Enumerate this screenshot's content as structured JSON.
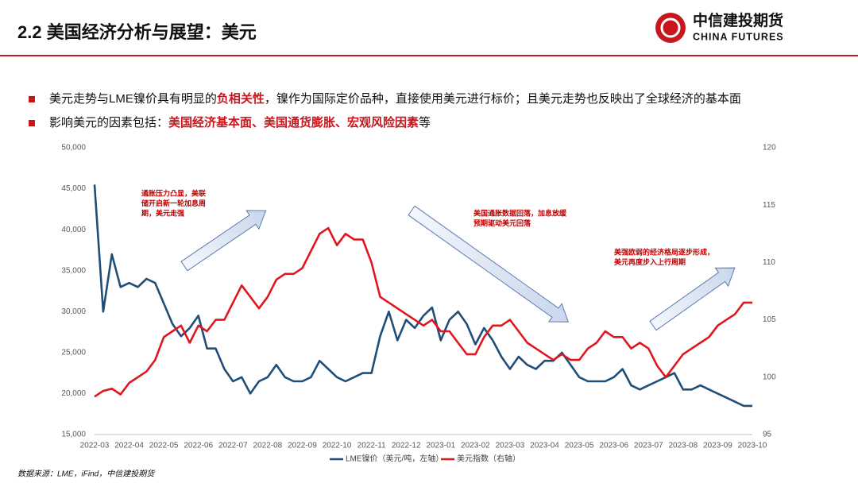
{
  "header": {
    "title": "2.2 美国经济分析与展望：美元",
    "logo_name": "中信建投期货",
    "logo_en": "CHINA FUTURES"
  },
  "bullets": [
    {
      "segments": [
        {
          "text": "美元走势与LME镍价具有明显的"
        },
        {
          "text": "负相关性",
          "highlight": true
        },
        {
          "text": "，镍作为国际定价品种，直接使用美元进行标价；且美元走势也反映出了全球经济的基本面"
        }
      ]
    },
    {
      "segments": [
        {
          "text": "影响美元的因素包括："
        },
        {
          "text": "美国经济基本面、美国通货膨胀、宏观风险因素",
          "highlight": true
        },
        {
          "text": "等"
        }
      ]
    }
  ],
  "chart_data": {
    "type": "line",
    "categories": [
      "2022-03",
      null,
      null,
      null,
      "2022-04",
      null,
      null,
      null,
      "2022-05",
      null,
      null,
      null,
      "2022-06",
      null,
      null,
      null,
      "2022-07",
      null,
      null,
      null,
      "2022-08",
      null,
      null,
      null,
      "2022-09",
      null,
      null,
      null,
      "2022-10",
      null,
      null,
      null,
      "2022-11",
      null,
      null,
      null,
      "2022-12",
      null,
      null,
      null,
      "2023-01",
      null,
      null,
      null,
      "2023-02",
      null,
      null,
      null,
      "2023-03",
      null,
      null,
      null,
      "2023-04",
      null,
      null,
      null,
      "2023-05",
      null,
      null,
      null,
      "2023-06",
      null,
      null,
      null,
      "2023-07",
      null,
      null,
      null,
      "2023-08",
      null,
      null,
      null,
      "2023-09",
      null,
      null,
      null,
      "2023-10"
    ],
    "series": [
      {
        "name": "LME镍价（美元/吨，左轴）",
        "color": "#1f4e79",
        "axis": "y",
        "values": [
          45500,
          30000,
          37000,
          33000,
          33500,
          33000,
          34000,
          33500,
          31000,
          28500,
          27000,
          28000,
          29500,
          25500,
          25500,
          23000,
          21500,
          22000,
          20000,
          21500,
          22000,
          23500,
          22000,
          21500,
          21500,
          22000,
          24000,
          23000,
          22000,
          21500,
          22000,
          22500,
          22500,
          27000,
          30000,
          26500,
          29000,
          28000,
          29500,
          30500,
          26500,
          29000,
          30000,
          28500,
          26000,
          28000,
          26500,
          24500,
          23000,
          24500,
          23500,
          23000,
          24000,
          24000,
          25000,
          23500,
          22000,
          21500,
          21500,
          21500,
          22000,
          23000,
          21000,
          20500,
          21000,
          21500,
          22000,
          22500,
          20500,
          20500,
          21000,
          20500,
          20000,
          19500,
          19000,
          18500,
          18500
        ]
      },
      {
        "name": "美元指数（右轴）",
        "color": "#e0161f",
        "axis": "y2",
        "values": [
          98.3,
          98.8,
          99,
          98.5,
          99.5,
          100,
          100.5,
          101.5,
          103.5,
          104,
          104.5,
          103,
          104.5,
          104,
          105,
          105,
          106.5,
          108,
          107,
          106,
          107,
          108.5,
          109,
          109,
          109.5,
          111,
          112.5,
          113,
          111.5,
          112.5,
          112,
          112,
          110,
          107,
          106.5,
          106,
          105.5,
          105,
          104.5,
          105,
          104,
          104,
          103,
          102,
          102,
          103.5,
          104.5,
          104.5,
          105,
          104,
          103,
          102.5,
          102,
          101.5,
          102,
          101.5,
          101.5,
          102.5,
          103,
          104,
          103.5,
          103.5,
          102.5,
          103,
          102.5,
          101,
          100,
          101,
          102,
          102.5,
          103,
          103.5,
          104.5,
          105,
          105.5,
          106.5,
          106.5
        ]
      }
    ],
    "ylim": [
      15000,
      50000
    ],
    "yticks": [
      {
        "value": 15000,
        "label": "15,000"
      },
      {
        "value": 20000,
        "label": "20,000"
      },
      {
        "value": 25000,
        "label": "25,000"
      },
      {
        "value": 30000,
        "label": "30,000"
      },
      {
        "value": 35000,
        "label": "35,000"
      },
      {
        "value": 40000,
        "label": "40,000"
      },
      {
        "value": 45000,
        "label": "45,000"
      },
      {
        "value": 50000,
        "label": "50,000"
      }
    ],
    "y2lim": [
      95,
      120
    ],
    "y2ticks": [
      95,
      100,
      105,
      110,
      115,
      120
    ],
    "grid": false,
    "legend": "bottom",
    "annotations": [
      {
        "lines": [
          "通胀压力凸显，美联",
          "储开启新一轮加息周",
          "期，美元走强"
        ]
      },
      {
        "lines": [
          "美国通胀数据回落，加息放缓",
          "预期驱动美元回落"
        ]
      },
      {
        "lines": [
          "美强欧弱的经济格局逐步形成，",
          "美元再度步入上行周期"
        ]
      }
    ]
  },
  "source": "数据来源：LME，iFind，中信建投期货"
}
